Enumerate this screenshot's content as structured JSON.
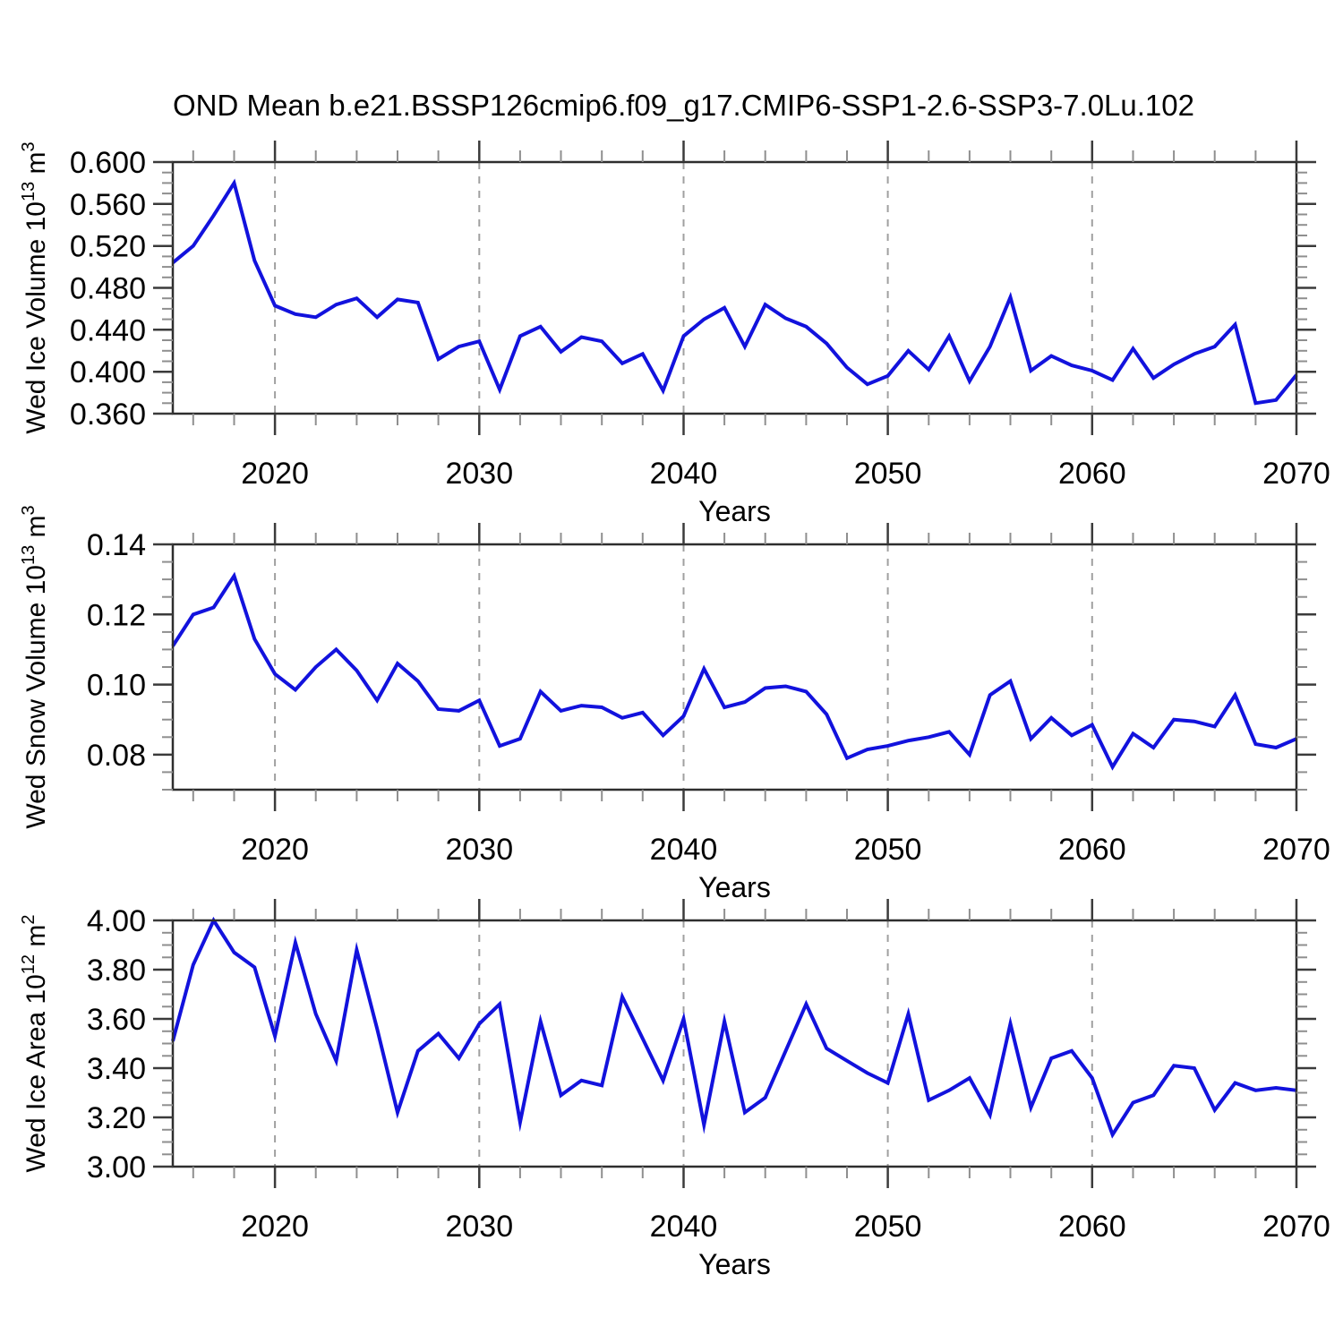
{
  "title": "OND Mean b.e21.BSSP126cmip6.f09_g17.CMIP6-SSP1-2.6-SSP3-7.0Lu.102",
  "colors": {
    "line": "#1212dd",
    "grid": "#a0a0a0",
    "frame": "#2e2e2e",
    "major_tick": "#3b3b3b",
    "minor_tick": "#8f8f8f",
    "text": "#000000"
  },
  "chart_data": {
    "type": "line",
    "x": [
      2015,
      2016,
      2017,
      2018,
      2019,
      2020,
      2021,
      2022,
      2023,
      2024,
      2025,
      2026,
      2027,
      2028,
      2029,
      2030,
      2031,
      2032,
      2033,
      2034,
      2035,
      2036,
      2037,
      2038,
      2039,
      2040,
      2041,
      2042,
      2043,
      2044,
      2045,
      2046,
      2047,
      2048,
      2049,
      2050,
      2051,
      2052,
      2053,
      2054,
      2055,
      2056,
      2057,
      2058,
      2059,
      2060,
      2061,
      2062,
      2063,
      2064,
      2065,
      2066,
      2067,
      2068,
      2069,
      2070
    ],
    "xlim": [
      2015,
      2070
    ],
    "xtick_major": [
      2020,
      2030,
      2040,
      2050,
      2060,
      2070
    ],
    "xtick_minor_step": 2,
    "grid_x": [
      2020,
      2030,
      2040,
      2050,
      2060
    ],
    "grid_style": "dashed-vertical",
    "legend": "none",
    "panels": [
      {
        "name": "ice-volume",
        "ylabel": "Wed Ice Volume 10¹³ m³",
        "ylabel_parts": [
          {
            "t": "Wed Ice Volume 10"
          },
          {
            "t": "13",
            "sup": true
          },
          {
            "t": " m"
          },
          {
            "t": "3",
            "sup": true
          }
        ],
        "xlabel": "Years",
        "ylim": [
          0.36,
          0.6
        ],
        "ytick_major_start": 0.36,
        "ytick_major_step": 0.04,
        "ytick_minor_step": 0.01,
        "ydecimals": 3,
        "values": [
          0.504,
          0.52,
          0.549,
          0.58,
          0.506,
          0.463,
          0.455,
          0.452,
          0.464,
          0.47,
          0.452,
          0.469,
          0.466,
          0.412,
          0.424,
          0.429,
          0.383,
          0.434,
          0.443,
          0.419,
          0.433,
          0.429,
          0.408,
          0.417,
          0.382,
          0.434,
          0.45,
          0.461,
          0.424,
          0.464,
          0.451,
          0.443,
          0.427,
          0.404,
          0.388,
          0.396,
          0.42,
          0.402,
          0.434,
          0.391,
          0.424,
          0.471,
          0.401,
          0.415,
          0.406,
          0.401,
          0.392,
          0.422,
          0.394,
          0.407,
          0.417,
          0.424,
          0.445,
          0.37,
          0.373,
          0.397
        ]
      },
      {
        "name": "snow-volume",
        "ylabel": "Wed Snow Volume 10¹³ m³",
        "ylabel_parts": [
          {
            "t": "Wed Snow Volume 10"
          },
          {
            "t": "13",
            "sup": true
          },
          {
            "t": " m"
          },
          {
            "t": "3",
            "sup": true
          }
        ],
        "xlabel": "Years",
        "ylim": [
          0.07,
          0.14
        ],
        "ytick_major_start": 0.08,
        "ytick_major_step": 0.02,
        "ytick_minor_step": 0.005,
        "ydecimals": 2,
        "values": [
          0.111,
          0.12,
          0.122,
          0.131,
          0.113,
          0.103,
          0.0985,
          0.105,
          0.11,
          0.104,
          0.0955,
          0.106,
          0.101,
          0.093,
          0.0925,
          0.0955,
          0.0825,
          0.0845,
          0.098,
          0.0925,
          0.094,
          0.0935,
          0.0905,
          0.092,
          0.0855,
          0.091,
          0.1045,
          0.0935,
          0.095,
          0.099,
          0.0995,
          0.098,
          0.0915,
          0.079,
          0.0815,
          0.0825,
          0.084,
          0.085,
          0.0865,
          0.08,
          0.097,
          0.101,
          0.0845,
          0.0905,
          0.0855,
          0.0885,
          0.0765,
          0.086,
          0.082,
          0.09,
          0.0895,
          0.088,
          0.097,
          0.083,
          0.082,
          0.0845
        ]
      },
      {
        "name": "ice-area",
        "ylabel": "Wed Ice Area 10¹² m²",
        "ylabel_parts": [
          {
            "t": "Wed Ice Area 10"
          },
          {
            "t": "12",
            "sup": true
          },
          {
            "t": " m"
          },
          {
            "t": "2",
            "sup": true
          }
        ],
        "xlabel": "Years",
        "ylim": [
          3.0,
          4.0
        ],
        "ytick_major_start": 3.0,
        "ytick_major_step": 0.2,
        "ytick_minor_step": 0.05,
        "ydecimals": 2,
        "values": [
          3.51,
          3.82,
          4.0,
          3.87,
          3.81,
          3.53,
          3.91,
          3.62,
          3.43,
          3.88,
          3.56,
          3.22,
          3.47,
          3.54,
          3.44,
          3.58,
          3.66,
          3.18,
          3.59,
          3.29,
          3.35,
          3.33,
          3.69,
          3.52,
          3.35,
          3.6,
          3.17,
          3.59,
          3.22,
          3.28,
          3.47,
          3.66,
          3.48,
          3.43,
          3.38,
          3.34,
          3.62,
          3.27,
          3.31,
          3.36,
          3.21,
          3.58,
          3.24,
          3.44,
          3.47,
          3.36,
          3.13,
          3.26,
          3.29,
          3.41,
          3.4,
          3.23,
          3.34,
          3.31,
          3.32,
          3.31
        ]
      }
    ]
  }
}
